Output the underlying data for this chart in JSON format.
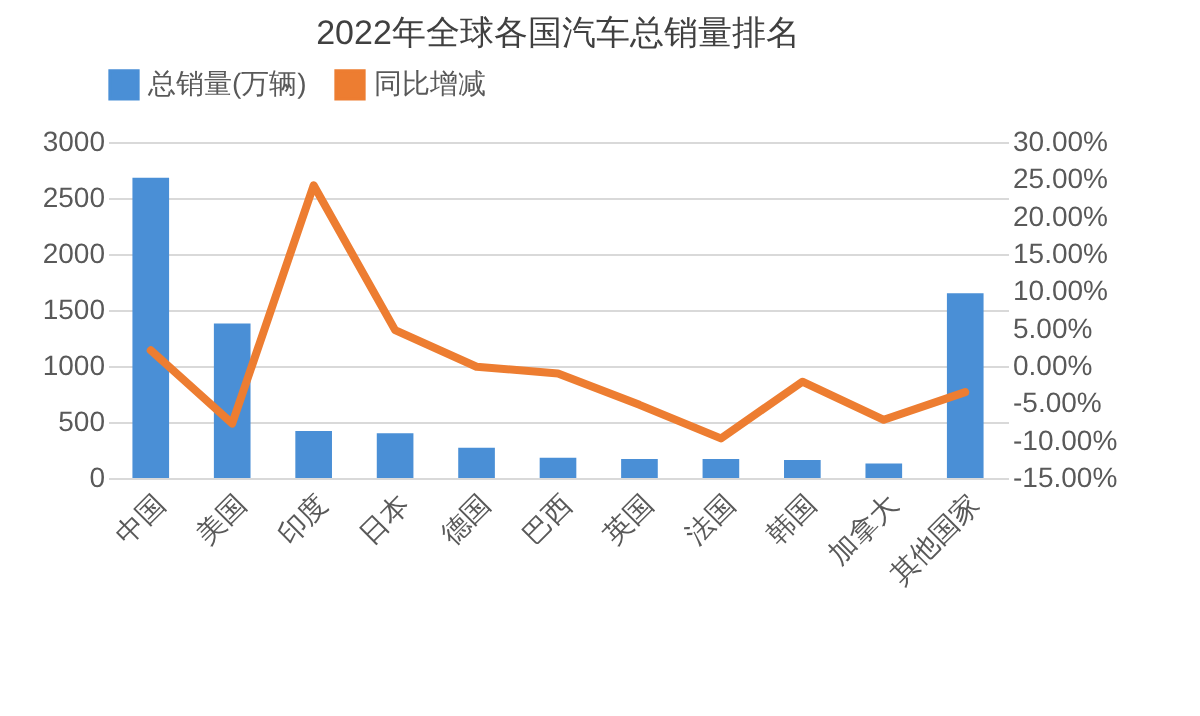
{
  "chart_data": {
    "type": "bar",
    "title": "2022年全球各国汽车总销量排名",
    "categories": [
      "中国",
      "美国",
      "印度",
      "日本",
      "德国",
      "巴西",
      "英国",
      "法国",
      "韩国",
      "加拿大",
      "其他国家"
    ],
    "series": [
      {
        "name": "总销量(万辆)",
        "color": "#4a8fd6",
        "values": [
          2680,
          1380,
          420,
          400,
          270,
          180,
          170,
          170,
          160,
          130,
          1650
        ]
      },
      {
        "name": "同比增减",
        "type": "line",
        "axis": "y2",
        "color": "#ed7d31",
        "values": [
          2.1,
          -7.7,
          24.2,
          4.8,
          -0.1,
          -1.0,
          -5.2,
          -9.7,
          -2.1,
          -7.2,
          -3.5
        ]
      }
    ],
    "ylim": [
      0,
      3000
    ],
    "yticks": [
      0,
      500,
      1000,
      1500,
      2000,
      2500,
      3000
    ],
    "y2lim": [
      -15,
      30
    ],
    "y2ticks": [
      {
        "value": -15,
        "label": "-15.00%"
      },
      {
        "value": -10,
        "label": "-10.00%"
      },
      {
        "value": -5,
        "label": "-5.00%"
      },
      {
        "value": 0,
        "label": "0.00%"
      },
      {
        "value": 5,
        "label": "5.00%"
      },
      {
        "value": 10,
        "label": "10.00%"
      },
      {
        "value": 15,
        "label": "15.00%"
      },
      {
        "value": 20,
        "label": "20.00%"
      },
      {
        "value": 25,
        "label": "25.00%"
      },
      {
        "value": 30,
        "label": "30.00%"
      }
    ],
    "grid": "y",
    "legend": "top",
    "line_style": "solid",
    "marker": "none"
  }
}
